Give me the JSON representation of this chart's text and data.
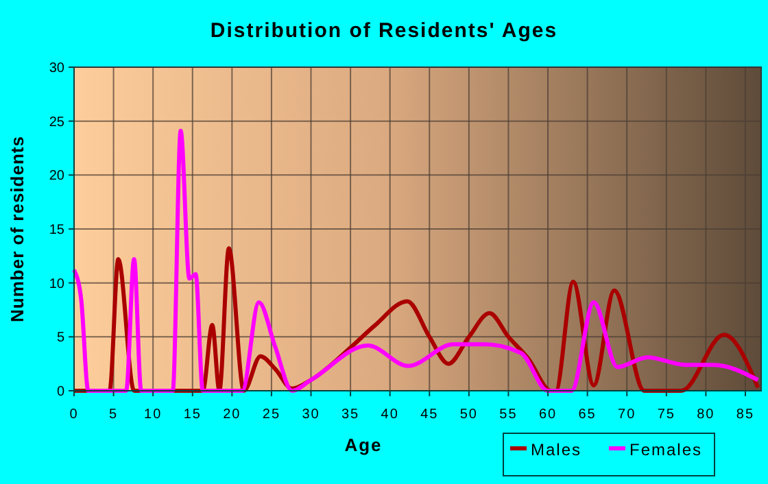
{
  "chart_data": {
    "type": "line",
    "title": "Distribution of Residents' Ages",
    "xlabel": "Age",
    "ylabel": "Number of residents",
    "xlim": [
      0,
      87
    ],
    "ylim": [
      0,
      30
    ],
    "xticks": [
      0,
      5,
      10,
      15,
      20,
      25,
      30,
      35,
      40,
      45,
      50,
      55,
      60,
      65,
      70,
      75,
      80,
      85
    ],
    "yticks": [
      0,
      5,
      10,
      15,
      20,
      25,
      30
    ],
    "grid": true,
    "legend": "bottom right",
    "line_style": "solid",
    "series": [
      {
        "name": "Males",
        "color": "#aa0000",
        "x": [
          0,
          4.5,
          5.6,
          7.6,
          16.3,
          17.5,
          18.4,
          19.6,
          21.5,
          23.6,
          25.5,
          27.6,
          30,
          35,
          38,
          42.2,
          45,
          47.4,
          50,
          52.6,
          55,
          57.5,
          60.4,
          61,
          63.2,
          65.8,
          68.4,
          72.2,
          76.9,
          82.3,
          86.6
        ],
        "values": [
          0,
          0,
          12.2,
          0,
          0,
          6.1,
          0,
          13.2,
          0,
          3.2,
          2,
          0.2,
          1,
          4,
          6,
          8.3,
          5,
          2.5,
          5,
          7.2,
          5,
          3,
          0,
          0,
          10.1,
          0.5,
          9.3,
          0,
          0,
          5.2,
          0.3
        ]
      },
      {
        "name": "Females",
        "color": "#ff00ff",
        "x": [
          0,
          0.9,
          1.8,
          6.6,
          7.6,
          8.5,
          12.5,
          13.5,
          14.6,
          15.4,
          16.3,
          21.3,
          23.4,
          25.5,
          27.6,
          30,
          37.2,
          42.3,
          48,
          52,
          56.6,
          60,
          63,
          65.8,
          68.8,
          72.6,
          77.4,
          81,
          86.6
        ],
        "values": [
          11.2,
          8.5,
          0,
          0,
          12.2,
          0,
          0,
          24.1,
          10.4,
          10.8,
          0,
          0,
          8.2,
          4,
          0,
          1,
          4.2,
          2.3,
          4.3,
          4.3,
          3.5,
          0,
          0,
          8.2,
          2.2,
          3.1,
          2.4,
          2.4,
          1
        ]
      }
    ]
  }
}
